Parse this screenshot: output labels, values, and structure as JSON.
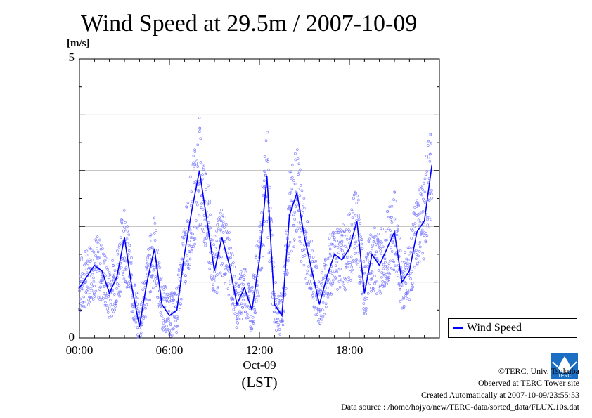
{
  "title": "Wind Speed at 29.5m / 2007-10-09",
  "y_unit": "[m/s]",
  "y_ticks": [
    "0",
    "5"
  ],
  "x_ticks": [
    "00:00",
    "06:00",
    "12:00",
    "18:00"
  ],
  "date_label": "Oct-09",
  "timezone_label": "(LST)",
  "legend": {
    "label": "Wind Speed"
  },
  "credits": {
    "copyright": "©TERC, Univ. Tsukuba",
    "observed": "Observed at TERC Tower site",
    "created": "Created Automatically at 2007-10-09/23:55:53",
    "source": "Data source : /home/hojyo/new/TERC-data/sorted_data/FLUX.10s.dat"
  },
  "logo_text": "TERC",
  "colors": {
    "series": "#0000ff",
    "points": "#7b7bff",
    "grid": "#b4b4b4"
  },
  "chart_data": {
    "type": "line",
    "title": "Wind Speed at 29.5m / 2007-10-09",
    "ylabel": "[m/s]",
    "xlabel": "(LST)",
    "ylim": [
      0,
      5
    ],
    "xlim_hours": [
      0,
      24
    ],
    "grid": true,
    "legend_position": "right",
    "series": [
      {
        "name": "Wind Speed",
        "x_hours": [
          0.0,
          0.5,
          1.0,
          1.5,
          2.0,
          2.5,
          3.0,
          3.5,
          4.0,
          4.5,
          5.0,
          5.5,
          6.0,
          6.5,
          7.0,
          7.5,
          8.0,
          8.5,
          9.0,
          9.5,
          10.0,
          10.5,
          11.0,
          11.5,
          12.0,
          12.5,
          13.0,
          13.5,
          14.0,
          14.5,
          15.0,
          15.5,
          16.0,
          16.5,
          17.0,
          17.5,
          18.0,
          18.5,
          19.0,
          19.5,
          20.0,
          20.5,
          21.0,
          21.5,
          22.0,
          22.5,
          23.0,
          23.5
        ],
        "values": [
          0.9,
          1.1,
          1.3,
          1.2,
          0.8,
          1.1,
          1.8,
          0.9,
          0.2,
          1.0,
          1.6,
          0.6,
          0.4,
          0.5,
          1.5,
          2.3,
          3.0,
          2.1,
          1.2,
          1.8,
          1.3,
          0.6,
          0.9,
          0.5,
          1.4,
          2.9,
          0.6,
          0.4,
          2.2,
          2.6,
          1.8,
          1.2,
          0.6,
          1.1,
          1.5,
          1.4,
          1.6,
          2.1,
          0.8,
          1.5,
          1.3,
          1.6,
          1.9,
          1.0,
          1.2,
          1.9,
          2.1,
          3.1
        ]
      }
    ]
  }
}
